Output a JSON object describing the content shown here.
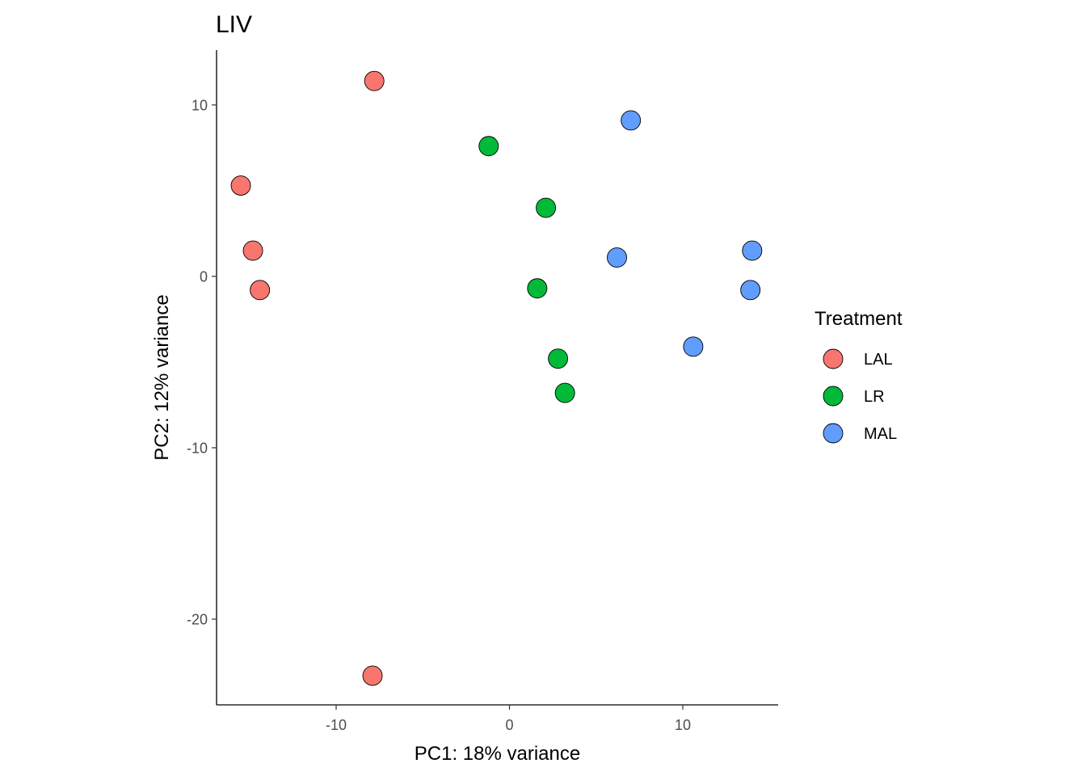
{
  "chart_data": {
    "type": "scatter",
    "title": "LIV",
    "xlabel": "PC1: 18% variance",
    "ylabel": "PC2: 12% variance",
    "xlim": [
      -16.9,
      15.5
    ],
    "ylim": [
      -25,
      13.2
    ],
    "xticks": [
      -10,
      0,
      10
    ],
    "yticks": [
      10,
      0,
      -10,
      -20
    ],
    "grid": false,
    "legend": {
      "title": "Treatment",
      "position": "right"
    },
    "series": [
      {
        "name": "LAL",
        "color": "#F8766D",
        "points": [
          {
            "x": -7.8,
            "y": 11.4
          },
          {
            "x": -15.5,
            "y": 5.3
          },
          {
            "x": -14.8,
            "y": 1.5
          },
          {
            "x": -14.4,
            "y": -0.8
          },
          {
            "x": -7.9,
            "y": -23.3
          }
        ]
      },
      {
        "name": "LR",
        "color": "#00BA38",
        "points": [
          {
            "x": -1.2,
            "y": 7.6
          },
          {
            "x": 2.1,
            "y": 4.0
          },
          {
            "x": 1.6,
            "y": -0.7
          },
          {
            "x": 2.8,
            "y": -4.8
          },
          {
            "x": 3.2,
            "y": -6.8
          }
        ]
      },
      {
        "name": "MAL",
        "color": "#619CFF",
        "points": [
          {
            "x": 7.0,
            "y": 9.1
          },
          {
            "x": 6.2,
            "y": 1.1
          },
          {
            "x": 14.0,
            "y": 1.5
          },
          {
            "x": 13.9,
            "y": -0.8
          },
          {
            "x": 10.6,
            "y": -4.1
          }
        ]
      }
    ]
  }
}
